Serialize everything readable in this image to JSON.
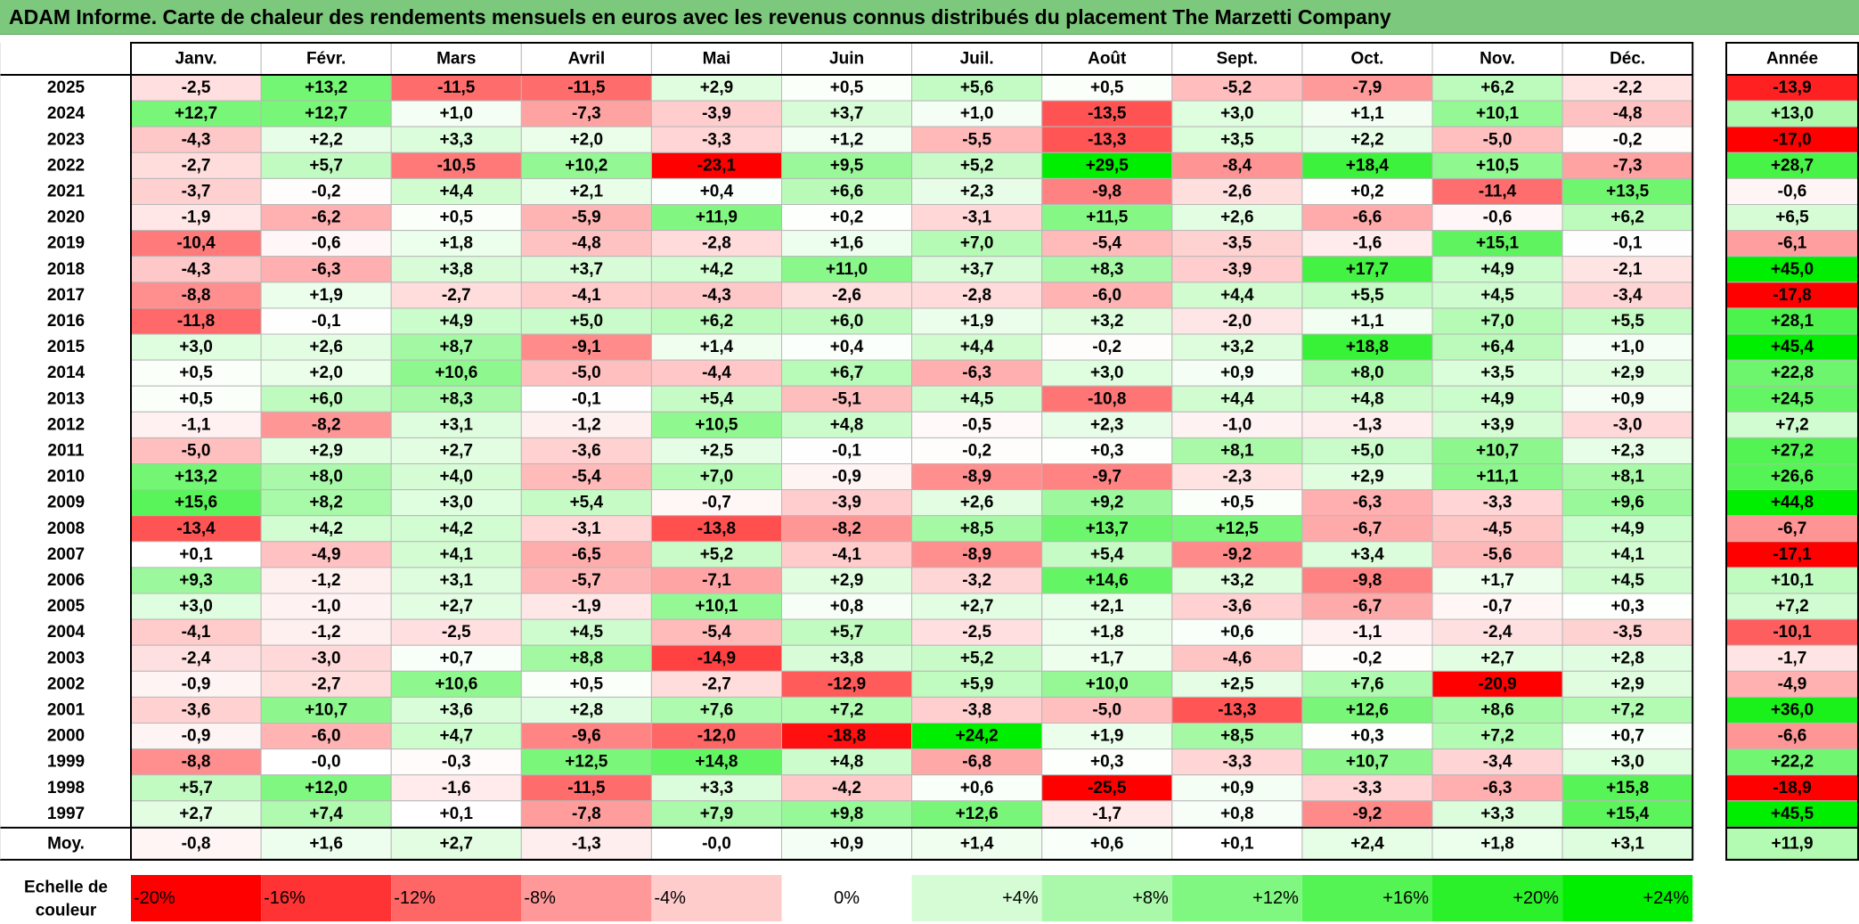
{
  "title": "ADAM Informe. Carte de chaleur des rendements mensuels en euros avec les revenus connus distribués du placement The Marzetti Company",
  "chart_data": {
    "type": "heatmap",
    "title": "ADAM Informe. Carte de chaleur des rendements mensuels en euros avec les revenus connus distribués du placement The Marzetti Company",
    "columns": [
      "Janv.",
      "Févr.",
      "Mars",
      "Avril",
      "Mai",
      "Juin",
      "Juil.",
      "Août",
      "Sept.",
      "Oct.",
      "Nov.",
      "Déc."
    ],
    "annual_header": "Année",
    "rows": [
      {
        "year": "2025",
        "values": [
          "-2,5",
          "+13,2",
          "-11,5",
          "-11,5",
          "+2,9",
          "+0,5",
          "+5,6",
          "+0,5",
          "-5,2",
          "-7,9",
          "+6,2",
          "-2,2"
        ],
        "annual": "-13,9"
      },
      {
        "year": "2024",
        "values": [
          "+12,7",
          "+12,7",
          "+1,0",
          "-7,3",
          "-3,9",
          "+3,7",
          "+1,0",
          "-13,5",
          "+3,0",
          "+1,1",
          "+10,1",
          "-4,8"
        ],
        "annual": "+13,0"
      },
      {
        "year": "2023",
        "values": [
          "-4,3",
          "+2,2",
          "+3,3",
          "+2,0",
          "-3,3",
          "+1,2",
          "-5,5",
          "-13,3",
          "+3,5",
          "+2,2",
          "-5,0",
          "-0,2"
        ],
        "annual": "-17,0"
      },
      {
        "year": "2022",
        "values": [
          "-2,7",
          "+5,7",
          "-10,5",
          "+10,2",
          "-23,1",
          "+9,5",
          "+5,2",
          "+29,5",
          "-8,4",
          "+18,4",
          "+10,5",
          "-7,3"
        ],
        "annual": "+28,7"
      },
      {
        "year": "2021",
        "values": [
          "-3,7",
          "-0,2",
          "+4,4",
          "+2,1",
          "+0,4",
          "+6,6",
          "+2,3",
          "-9,8",
          "-2,6",
          "+0,2",
          "-11,4",
          "+13,5"
        ],
        "annual": "-0,6"
      },
      {
        "year": "2020",
        "values": [
          "-1,9",
          "-6,2",
          "+0,5",
          "-5,9",
          "+11,9",
          "+0,2",
          "-3,1",
          "+11,5",
          "+2,6",
          "-6,6",
          "-0,6",
          "+6,2"
        ],
        "annual": "+6,5"
      },
      {
        "year": "2019",
        "values": [
          "-10,4",
          "-0,6",
          "+1,8",
          "-4,8",
          "-2,8",
          "+1,6",
          "+7,0",
          "-5,4",
          "-3,5",
          "-1,6",
          "+15,1",
          "-0,1"
        ],
        "annual": "-6,1"
      },
      {
        "year": "2018",
        "values": [
          "-4,3",
          "-6,3",
          "+3,8",
          "+3,7",
          "+4,2",
          "+11,0",
          "+3,7",
          "+8,3",
          "-3,9",
          "+17,7",
          "+4,9",
          "-2,1"
        ],
        "annual": "+45,0"
      },
      {
        "year": "2017",
        "values": [
          "-8,8",
          "+1,9",
          "-2,7",
          "-4,1",
          "-4,3",
          "-2,6",
          "-2,8",
          "-6,0",
          "+4,4",
          "+5,5",
          "+4,5",
          "-3,4"
        ],
        "annual": "-17,8"
      },
      {
        "year": "2016",
        "values": [
          "-11,8",
          "-0,1",
          "+4,9",
          "+5,0",
          "+6,2",
          "+6,0",
          "+1,9",
          "+3,2",
          "-2,0",
          "+1,1",
          "+7,0",
          "+5,5"
        ],
        "annual": "+28,1"
      },
      {
        "year": "2015",
        "values": [
          "+3,0",
          "+2,6",
          "+8,7",
          "-9,1",
          "+1,4",
          "+0,4",
          "+4,4",
          "-0,2",
          "+3,2",
          "+18,8",
          "+6,4",
          "+1,0"
        ],
        "annual": "+45,4"
      },
      {
        "year": "2014",
        "values": [
          "+0,5",
          "+2,0",
          "+10,6",
          "-5,0",
          "-4,4",
          "+6,7",
          "-6,3",
          "+3,0",
          "+0,9",
          "+8,0",
          "+3,5",
          "+2,9"
        ],
        "annual": "+22,8"
      },
      {
        "year": "2013",
        "values": [
          "+0,5",
          "+6,0",
          "+8,3",
          "-0,1",
          "+5,4",
          "-5,1",
          "+4,5",
          "-10,8",
          "+4,4",
          "+4,8",
          "+4,9",
          "+0,9"
        ],
        "annual": "+24,5"
      },
      {
        "year": "2012",
        "values": [
          "-1,1",
          "-8,2",
          "+3,1",
          "-1,2",
          "+10,5",
          "+4,8",
          "-0,5",
          "+2,3",
          "-1,0",
          "-1,3",
          "+3,9",
          "-3,0"
        ],
        "annual": "+7,2"
      },
      {
        "year": "2011",
        "values": [
          "-5,0",
          "+2,9",
          "+2,7",
          "-3,6",
          "+2,5",
          "-0,1",
          "-0,2",
          "+0,3",
          "+8,1",
          "+5,0",
          "+10,7",
          "+2,3"
        ],
        "annual": "+27,2"
      },
      {
        "year": "2010",
        "values": [
          "+13,2",
          "+8,0",
          "+4,0",
          "-5,4",
          "+7,0",
          "-0,9",
          "-8,9",
          "-9,7",
          "-2,3",
          "+2,9",
          "+11,1",
          "+8,1"
        ],
        "annual": "+26,6"
      },
      {
        "year": "2009",
        "values": [
          "+15,6",
          "+8,2",
          "+3,0",
          "+5,4",
          "-0,7",
          "-3,9",
          "+2,6",
          "+9,2",
          "+0,5",
          "-6,3",
          "-3,3",
          "+9,6"
        ],
        "annual": "+44,8"
      },
      {
        "year": "2008",
        "values": [
          "-13,4",
          "+4,2",
          "+4,2",
          "-3,1",
          "-13,8",
          "-8,2",
          "+8,5",
          "+13,7",
          "+12,5",
          "-6,7",
          "-4,5",
          "+4,9"
        ],
        "annual": "-6,7"
      },
      {
        "year": "2007",
        "values": [
          "+0,1",
          "-4,9",
          "+4,1",
          "-6,5",
          "+5,2",
          "-4,1",
          "-8,9",
          "+5,4",
          "-9,2",
          "+3,4",
          "-5,6",
          "+4,1"
        ],
        "annual": "-17,1"
      },
      {
        "year": "2006",
        "values": [
          "+9,3",
          "-1,2",
          "+3,1",
          "-5,7",
          "-7,1",
          "+2,9",
          "-3,2",
          "+14,6",
          "+3,2",
          "-9,8",
          "+1,7",
          "+4,5"
        ],
        "annual": "+10,1"
      },
      {
        "year": "2005",
        "values": [
          "+3,0",
          "-1,0",
          "+2,7",
          "-1,9",
          "+10,1",
          "+0,8",
          "+2,7",
          "+2,1",
          "-3,6",
          "-6,7",
          "-0,7",
          "+0,3"
        ],
        "annual": "+7,2"
      },
      {
        "year": "2004",
        "values": [
          "-4,1",
          "-1,2",
          "-2,5",
          "+4,5",
          "-5,4",
          "+5,7",
          "-2,5",
          "+1,8",
          "+0,6",
          "-1,1",
          "-2,4",
          "-3,5"
        ],
        "annual": "-10,1"
      },
      {
        "year": "2003",
        "values": [
          "-2,4",
          "-3,0",
          "+0,7",
          "+8,8",
          "-14,9",
          "+3,8",
          "+5,2",
          "+1,7",
          "-4,6",
          "-0,2",
          "+2,7",
          "+2,8"
        ],
        "annual": "-1,7"
      },
      {
        "year": "2002",
        "values": [
          "-0,9",
          "-2,7",
          "+10,6",
          "+0,5",
          "-2,7",
          "-12,9",
          "+5,9",
          "+10,0",
          "+2,5",
          "+7,6",
          "-20,9",
          "+2,9"
        ],
        "annual": "-4,9"
      },
      {
        "year": "2001",
        "values": [
          "-3,6",
          "+10,7",
          "+3,6",
          "+2,8",
          "+7,6",
          "+7,2",
          "-3,8",
          "-5,0",
          "-13,3",
          "+12,6",
          "+8,6",
          "+7,2"
        ],
        "annual": "+36,0"
      },
      {
        "year": "2000",
        "values": [
          "-0,9",
          "-6,0",
          "+4,7",
          "-9,6",
          "-12,0",
          "-18,8",
          "+24,2",
          "+1,9",
          "+8,5",
          "+0,3",
          "+7,2",
          "+0,7"
        ],
        "annual": "-6,6"
      },
      {
        "year": "1999",
        "values": [
          "-8,8",
          "-0,0",
          "-0,3",
          "+12,5",
          "+14,8",
          "+4,8",
          "-6,8",
          "+0,3",
          "-3,3",
          "+10,7",
          "-3,4",
          "+3,0"
        ],
        "annual": "+22,2"
      },
      {
        "year": "1998",
        "values": [
          "+5,7",
          "+12,0",
          "-1,6",
          "-11,5",
          "+3,3",
          "-4,2",
          "+0,6",
          "-25,5",
          "+0,9",
          "-3,3",
          "-6,3",
          "+15,8"
        ],
        "annual": "-18,9"
      },
      {
        "year": "1997",
        "values": [
          "+2,7",
          "+7,4",
          "+0,1",
          "-7,8",
          "+7,9",
          "+9,8",
          "+12,6",
          "-1,7",
          "+0,8",
          "-9,2",
          "+3,3",
          "+15,4"
        ],
        "annual": "+45,5"
      }
    ],
    "average": {
      "label": "Moy.",
      "values": [
        "-0,8",
        "+1,6",
        "+2,7",
        "-1,3",
        "-0,0",
        "+0,9",
        "+1,4",
        "+0,6",
        "+0,1",
        "+2,4",
        "+1,8",
        "+3,1"
      ],
      "annual": "+11,9"
    },
    "scale": {
      "label_line1": "Echelle de",
      "label_line2": "couleur",
      "stops": [
        "-20%",
        "-16%",
        "-12%",
        "-8%",
        "-4%",
        "0%",
        "+4%",
        "+8%",
        "+12%",
        "+16%",
        "+20%",
        "+24%"
      ],
      "stop_values": [
        -20,
        -16,
        -12,
        -8,
        -4,
        0,
        4,
        8,
        12,
        16,
        20,
        24
      ]
    },
    "colors": {
      "negative_max": "#ff0000",
      "neutral": "#ffffff",
      "positive_max": "#00ee00",
      "title_bar": "#7cc87c",
      "grid": "#b8b8b8",
      "border": "#000000"
    }
  }
}
